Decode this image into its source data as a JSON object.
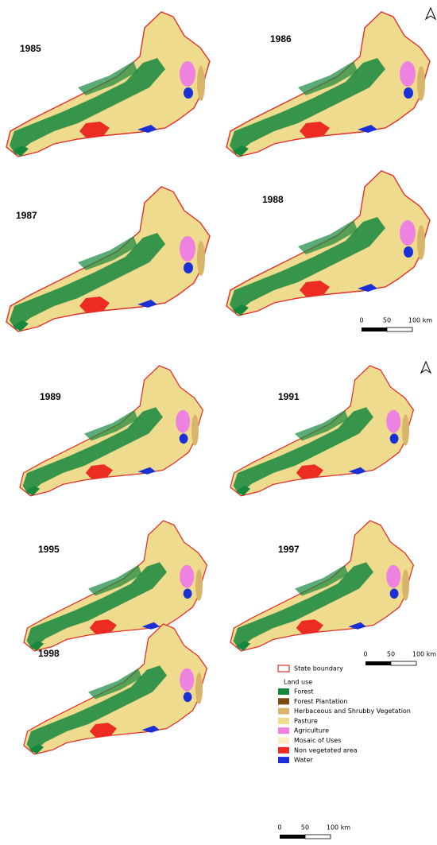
{
  "maps": [
    {
      "year": "1985"
    },
    {
      "year": "1986"
    },
    {
      "year": "1987"
    },
    {
      "year": "1988"
    },
    {
      "year": "1989"
    },
    {
      "year": "1991"
    },
    {
      "year": "1995"
    },
    {
      "year": "1997"
    },
    {
      "year": "1998"
    }
  ],
  "scale_bars": [
    {
      "labels": [
        "0",
        "50",
        "100 km"
      ]
    },
    {
      "labels": [
        "0",
        "50",
        "100 km"
      ]
    },
    {
      "labels": [
        "0",
        "50",
        "100 km"
      ]
    }
  ],
  "legend": {
    "boundary": "State boundary",
    "heading": "Land use",
    "items": [
      {
        "label": "Forest",
        "color": "#16873f"
      },
      {
        "label": "Forest Plantation",
        "color": "#7a4a10"
      },
      {
        "label": "Herbaceous and Shrubby Vegetation",
        "color": "#d8b56a"
      },
      {
        "label": "Pasture",
        "color": "#efdb8e"
      },
      {
        "label": "Agriculture",
        "color": "#ee82e0"
      },
      {
        "label": "Mosaic of Uses",
        "color": "#fbeec2"
      },
      {
        "label": "Non vegetated area",
        "color": "#ec2b22"
      },
      {
        "label": "Water",
        "color": "#1b2fd6"
      }
    ]
  }
}
